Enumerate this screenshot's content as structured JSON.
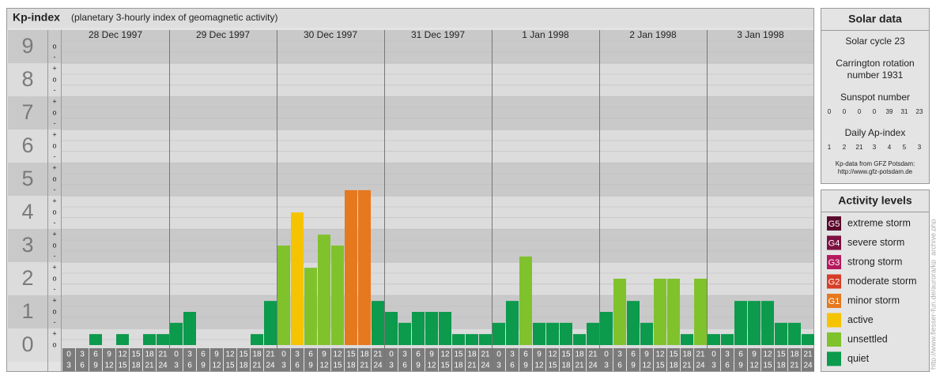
{
  "chart_data": {
    "type": "bar",
    "title": "Kp-index",
    "subtitle": "(planetary 3-hourly index of geomagnetic activity)",
    "ylim": [
      0,
      9.5
    ],
    "yticks": [
      0,
      1,
      2,
      3,
      4,
      5,
      6,
      7,
      8,
      9
    ],
    "minor_yticks": [
      {
        "value": 0,
        "label": "o"
      },
      {
        "value": 0.33,
        "label": "+"
      },
      {
        "value": 0.67,
        "label": "-"
      },
      {
        "value": 1,
        "label": "o"
      },
      {
        "value": 1.33,
        "label": "+"
      },
      {
        "value": 1.67,
        "label": "-"
      },
      {
        "value": 2,
        "label": "o"
      },
      {
        "value": 2.33,
        "label": "+"
      },
      {
        "value": 2.67,
        "label": "-"
      },
      {
        "value": 3,
        "label": "o"
      },
      {
        "value": 3.33,
        "label": "+"
      },
      {
        "value": 3.67,
        "label": "-"
      },
      {
        "value": 4,
        "label": "o"
      },
      {
        "value": 4.33,
        "label": "+"
      },
      {
        "value": 4.67,
        "label": "-"
      },
      {
        "value": 5,
        "label": "o"
      },
      {
        "value": 5.33,
        "label": "+"
      },
      {
        "value": 5.67,
        "label": "-"
      },
      {
        "value": 6,
        "label": "o"
      },
      {
        "value": 6.33,
        "label": "+"
      },
      {
        "value": 6.67,
        "label": "-"
      },
      {
        "value": 7,
        "label": "o"
      },
      {
        "value": 7.33,
        "label": "+"
      },
      {
        "value": 7.67,
        "label": "-"
      },
      {
        "value": 8,
        "label": "o"
      },
      {
        "value": 8.33,
        "label": "+"
      },
      {
        "value": 8.67,
        "label": "-"
      },
      {
        "value": 9,
        "label": "o"
      }
    ],
    "hours_start": [
      0,
      3,
      6,
      9,
      12,
      15,
      18,
      21
    ],
    "hours_end": [
      3,
      6,
      9,
      12,
      15,
      18,
      21,
      24
    ],
    "days": [
      {
        "label": "28 Dec 1997",
        "values": [
          0,
          0,
          0.33,
          0,
          0.33,
          0,
          0.33,
          0.33
        ],
        "colors": [
          "#0c9a4c",
          "#0c9a4c",
          "#0c9a4c",
          "#0c9a4c",
          "#0c9a4c",
          "#0c9a4c",
          "#0c9a4c",
          "#0c9a4c"
        ]
      },
      {
        "label": "29 Dec 1997",
        "values": [
          0.67,
          1,
          0,
          0,
          0,
          0,
          0.33,
          1.33
        ],
        "colors": [
          "#0c9a4c",
          "#0c9a4c",
          "#0c9a4c",
          "#0c9a4c",
          "#0c9a4c",
          "#0c9a4c",
          "#0c9a4c",
          "#0c9a4c"
        ]
      },
      {
        "label": "30 Dec 1997",
        "values": [
          3,
          4,
          2.33,
          3.33,
          3,
          4.67,
          4.67,
          1.33
        ],
        "colors": [
          "#80c22c",
          "#f6c300",
          "#80c22c",
          "#80c22c",
          "#80c22c",
          "#e6781e",
          "#e6781e",
          "#0c9a4c"
        ]
      },
      {
        "label": "31 Dec 1997",
        "values": [
          1,
          0.67,
          1,
          1,
          1,
          0.33,
          0.33,
          0.33
        ],
        "colors": [
          "#0c9a4c",
          "#0c9a4c",
          "#0c9a4c",
          "#0c9a4c",
          "#0c9a4c",
          "#0c9a4c",
          "#0c9a4c",
          "#0c9a4c"
        ]
      },
      {
        "label": "1 Jan 1998",
        "values": [
          0.67,
          1.33,
          2.67,
          0.67,
          0.67,
          0.67,
          0.33,
          0.67
        ],
        "colors": [
          "#0c9a4c",
          "#0c9a4c",
          "#80c22c",
          "#0c9a4c",
          "#0c9a4c",
          "#0c9a4c",
          "#0c9a4c",
          "#0c9a4c"
        ]
      },
      {
        "label": "2 Jan 1998",
        "values": [
          1,
          2,
          1.33,
          0.67,
          2,
          2,
          0.33,
          2
        ],
        "colors": [
          "#0c9a4c",
          "#80c22c",
          "#0c9a4c",
          "#0c9a4c",
          "#80c22c",
          "#80c22c",
          "#0c9a4c",
          "#80c22c"
        ]
      },
      {
        "label": "3 Jan 1998",
        "values": [
          0.33,
          0.33,
          1.33,
          1.33,
          1.33,
          0.67,
          0.67,
          0.33
        ],
        "colors": [
          "#0c9a4c",
          "#0c9a4c",
          "#0c9a4c",
          "#0c9a4c",
          "#0c9a4c",
          "#0c9a4c",
          "#0c9a4c",
          "#0c9a4c"
        ]
      }
    ]
  },
  "solar": {
    "title": "Solar data",
    "cycle": "Solar cycle 23",
    "carrington": [
      "Carrington rotation",
      "number 1931"
    ],
    "sunspot_label": "Sunspot number",
    "sunspot": [
      0,
      0,
      0,
      0,
      39,
      31,
      23
    ],
    "ap_label": "Daily Ap-index",
    "ap": [
      1,
      2,
      21,
      3,
      4,
      5,
      3
    ],
    "source": [
      "Kp-data from GFZ Potsdam:",
      "http://www.gfz-potsdam.de"
    ]
  },
  "legend": {
    "title": "Activity levels",
    "items": [
      {
        "badge": "G5",
        "label": "extreme storm",
        "color": "#5a0a2d"
      },
      {
        "badge": "G4",
        "label": "severe storm",
        "color": "#7c1142"
      },
      {
        "badge": "G3",
        "label": "strong storm",
        "color": "#b5195e"
      },
      {
        "badge": "G2",
        "label": "moderate storm",
        "color": "#d63e28"
      },
      {
        "badge": "G1",
        "label": "minor storm",
        "color": "#e6781e"
      },
      {
        "label": "active",
        "color": "#f6c300"
      },
      {
        "label": "unsettled",
        "color": "#80c22c"
      },
      {
        "label": "quiet",
        "color": "#0c9a4c"
      }
    ]
  },
  "watermark": "http://www.fiesser-fun.de/aurora/kp_archive.php"
}
